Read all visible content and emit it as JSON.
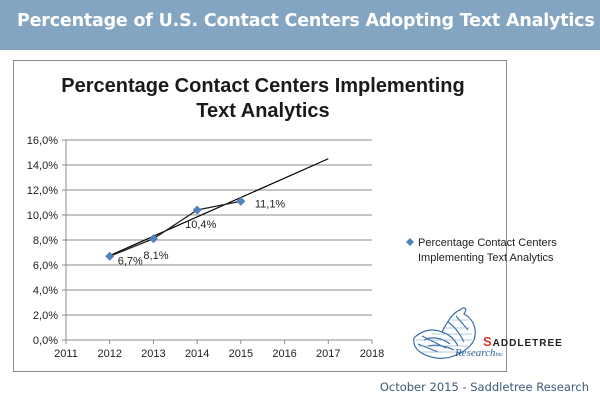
{
  "header": {
    "title": "Percentage of U.S. Contact Centers Adopting Text Analytics"
  },
  "footer": {
    "text": "October 2015 - Saddletree Research"
  },
  "logo": {
    "brand_initial": "S",
    "brand_rest": "ADDLETREE",
    "sub": "Research",
    "sub_suffix": "inc",
    "icon": "saddle-logo-icon"
  },
  "colors": {
    "header_bg": "#84a5c2",
    "marker": "#4f81bd",
    "trendline": "#000000",
    "gridline": "#8c8c8c",
    "footer_text": "#3d5a78",
    "logo_red": "#d9342b"
  },
  "chart_data": {
    "type": "scatter",
    "title": "Percentage Contact Centers Implementing Text Analytics",
    "title_lines": [
      "Percentage Contact Centers Implementing",
      "Text Analytics"
    ],
    "xlabel": "",
    "ylabel": "",
    "xlim": [
      2011,
      2018
    ],
    "ylim": [
      0,
      16
    ],
    "x_ticks": [
      "2011",
      "2012",
      "2013",
      "2014",
      "2015",
      "2016",
      "2017",
      "2018"
    ],
    "y_ticks": [
      "0,0%",
      "2,0%",
      "4,0%",
      "6,0%",
      "8,0%",
      "10,0%",
      "12,0%",
      "14,0%",
      "16,0%"
    ],
    "grid": "horizontal",
    "legend_position": "right",
    "series": [
      {
        "name": "Percentage Contact Centers Implementing Text Analytics",
        "legend_lines": [
          "Percentage Contact Centers",
          "Implementing Text Analytics"
        ],
        "marker": "diamond",
        "x": [
          2012,
          2013,
          2014,
          2015
        ],
        "y": [
          6.7,
          8.1,
          10.4,
          11.1
        ],
        "labels": [
          "6,7%",
          "8,1%",
          "10,4%",
          "11,1%"
        ]
      }
    ],
    "trendline": {
      "type": "linear",
      "x_start": 2012,
      "y_start": 6.75,
      "x_end": 2017,
      "y_end": 14.5
    }
  }
}
